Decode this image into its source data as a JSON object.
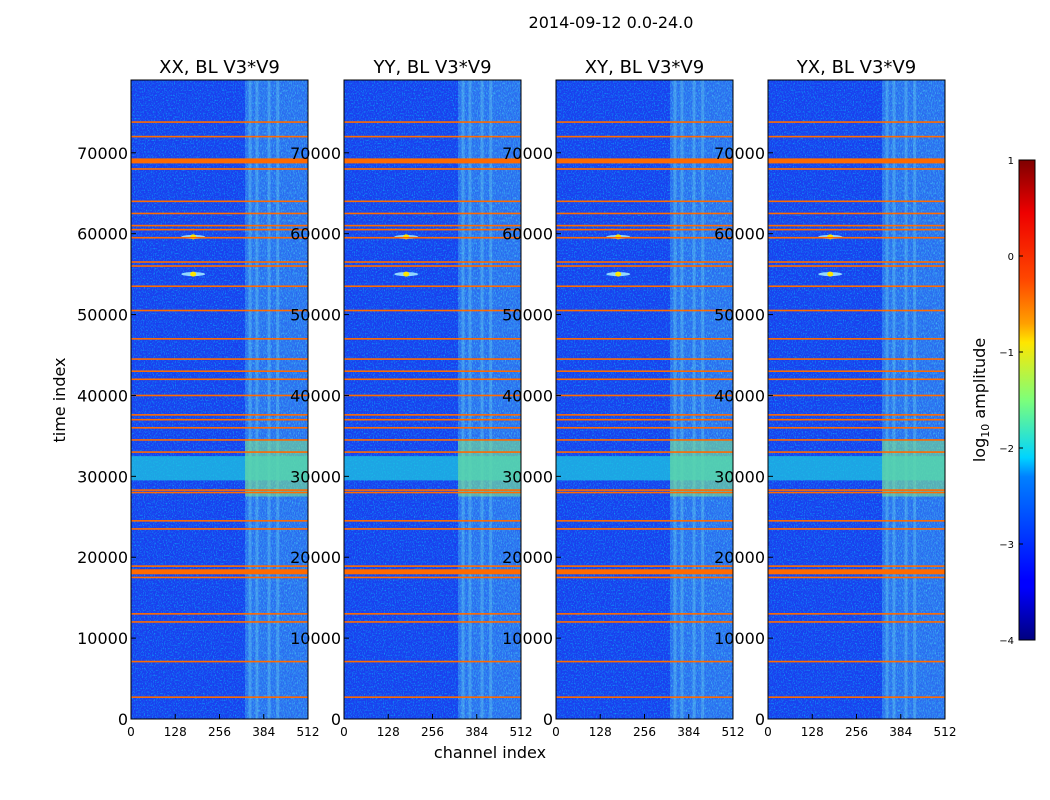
{
  "suptitle": "2014-09-12 0.0-24.0",
  "chart_data": {
    "type": "heatmap",
    "title": "2014-09-12 0.0-24.0",
    "xlabel": "channel index",
    "ylabel": "time index",
    "xlim": [
      0,
      512
    ],
    "ylim": [
      0,
      79000
    ],
    "x_ticks": [
      "0",
      "128",
      "256",
      "384",
      "512"
    ],
    "x_tick_values": [
      0,
      128,
      256,
      384,
      512
    ],
    "y_ticks": [
      "0",
      "10000",
      "20000",
      "30000",
      "40000",
      "50000",
      "60000",
      "70000"
    ],
    "y_tick_values": [
      0,
      10000,
      20000,
      30000,
      40000,
      50000,
      60000,
      70000
    ],
    "panels": [
      {
        "title": "XX, BL V3*V9",
        "polarization": "XX"
      },
      {
        "title": "YY, BL V3*V9",
        "polarization": "YY"
      },
      {
        "title": "XY, BL V3*V9",
        "polarization": "XY"
      },
      {
        "title": "YX, BL V3*V9",
        "polarization": "YX"
      }
    ],
    "colorbar": {
      "label_prefix": "log",
      "label_sub": "10",
      "label_suffix": " amplitude",
      "range": [
        -4,
        1
      ],
      "ticks": [
        "1",
        "0",
        "−1",
        "−2",
        "−3",
        "−4"
      ],
      "tick_values": [
        1,
        0,
        -1,
        -2,
        -3,
        -4
      ],
      "colormap": "jet"
    },
    "flagged_time_rows": [
      2700,
      7100,
      12000,
      13000,
      17500,
      18200,
      18900,
      23500,
      24500,
      28000,
      28300,
      33000,
      34500,
      36000,
      37000,
      37600,
      40000,
      42000,
      43000,
      44500,
      47000,
      50500,
      53500,
      56000,
      56500,
      59500,
      60500,
      61000,
      62500,
      64000,
      68000,
      69000,
      72000,
      73800
    ],
    "thick_flagged_rows": [
      18200,
      69000
    ],
    "rfi_band_channels": [
      330,
      512
    ],
    "bright_time_band": [
      29500,
      32500
    ],
    "bright_spot_channel": 180,
    "bright_spot_times": [
      55000,
      59600
    ]
  }
}
